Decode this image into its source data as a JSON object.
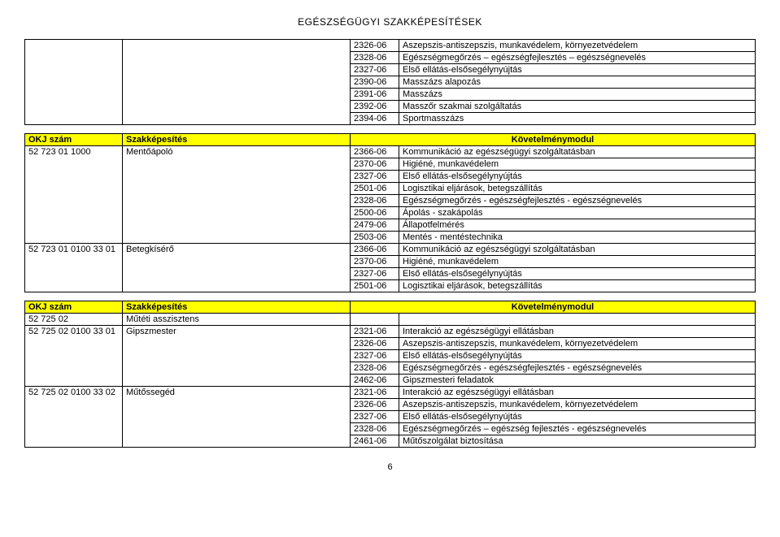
{
  "title": "EGÉSZSÉGÜGYI SZAKKÉPESÍTÉSEK",
  "page_number": "6",
  "header_labels": {
    "okj": "OKJ szám",
    "szak": "Szakképesítés",
    "kov": "Követelménymodul"
  },
  "top_table": [
    {
      "code": "2326-06",
      "desc": "Aszepszis-antiszepszis, munkavédelem, környezetvédelem"
    },
    {
      "code": "2328-06",
      "desc": "Egészségmegőrzés – egészségfejlesztés – egészségnevelés"
    },
    {
      "code": "2327-06",
      "desc": "Első ellátás-elsősegélynyújtás"
    },
    {
      "code": "2390-06",
      "desc": "Masszázs alapozás"
    },
    {
      "code": "2391-06",
      "desc": "Masszázs"
    },
    {
      "code": "2392-06",
      "desc": "Masszőr szakmai szolgáltatás"
    },
    {
      "code": "2394-06",
      "desc": "Sportmasszázs"
    }
  ],
  "table2": {
    "rows": [
      {
        "okj": "52 723 01 1000",
        "szak": "Mentőápoló",
        "code": "2366-06",
        "desc": "Kommunikáció az egészségügyi szolgáltatásban"
      },
      {
        "okj": "",
        "szak": "",
        "code": "2370-06",
        "desc": "Higiéné, munkavédelem"
      },
      {
        "okj": "",
        "szak": "",
        "code": "2327-06",
        "desc": "Első ellátás-elsősegélynyújtás"
      },
      {
        "okj": "",
        "szak": "",
        "code": "2501-06",
        "desc": "Logisztikai eljárások, betegszállítás"
      },
      {
        "okj": "",
        "szak": "",
        "code": "2328-06",
        "desc": "Egészségmegőrzés - egészségfejlesztés - egészségnevelés"
      },
      {
        "okj": "",
        "szak": "",
        "code": "2500-06",
        "desc": "Ápolás - szakápolás"
      },
      {
        "okj": "",
        "szak": "",
        "code": "2479-06",
        "desc": "Állapotfelmérés"
      },
      {
        "okj": "",
        "szak": "",
        "code": "2503-06",
        "desc": "Mentés - mentéstechnika"
      },
      {
        "okj": "52 723 01 0100 33 01",
        "szak": "Betegkísérő",
        "code": "2366-06",
        "desc": "Kommunikáció az egészségügyi szolgáltatásban"
      },
      {
        "okj": "",
        "szak": "",
        "code": "2370-06",
        "desc": "Higiéné, munkavédelem"
      },
      {
        "okj": "",
        "szak": "",
        "code": "2327-06",
        "desc": "Első ellátás-elsősegélynyújtás"
      },
      {
        "okj": "",
        "szak": "",
        "code": "2501-06",
        "desc": "Logisztikai eljárások, betegszállítás"
      }
    ]
  },
  "table3": {
    "rows": [
      {
        "okj": "52 725 02",
        "szak": "Műtéti asszisztens",
        "code": "",
        "desc": ""
      },
      {
        "okj": "52 725 02 0100 33 01",
        "szak": "Gipszmester",
        "code": "2321-06",
        "desc": "Interakció az egészségügyi ellátásban"
      },
      {
        "okj": "",
        "szak": "",
        "code": "2326-06",
        "desc": "Aszepszis-antiszepszis, munkavédelem, környezetvédelem"
      },
      {
        "okj": "",
        "szak": "",
        "code": "2327-06",
        "desc": "Első ellátás-elsősegélynyújtás"
      },
      {
        "okj": "",
        "szak": "",
        "code": "2328-06",
        "desc": "Egészségmegőrzés - egészségfejlesztés - egészségnevelés"
      },
      {
        "okj": "",
        "szak": "",
        "code": "2462-06",
        "desc": "Gipszmesteri feladatok"
      },
      {
        "okj": "52 725 02 0100 33 02",
        "szak": "Műtőssegéd",
        "code": "2321-06",
        "desc": "Interakció az egészségügyi ellátásban"
      },
      {
        "okj": "",
        "szak": "",
        "code": "2326-06",
        "desc": "Aszepszis-antiszepszis, munkavédelem, környezetvédelem"
      },
      {
        "okj": "",
        "szak": "",
        "code": "2327-06",
        "desc": "Első ellátás-elsősegélynyújtás"
      },
      {
        "okj": "",
        "szak": "",
        "code": "2328-06",
        "desc": "Egészségmegőrzés – egészség fejlesztés - egészségnevelés"
      },
      {
        "okj": "",
        "szak": "",
        "code": "2461-06",
        "desc": "Műtőszolgálat biztosítása"
      }
    ]
  }
}
